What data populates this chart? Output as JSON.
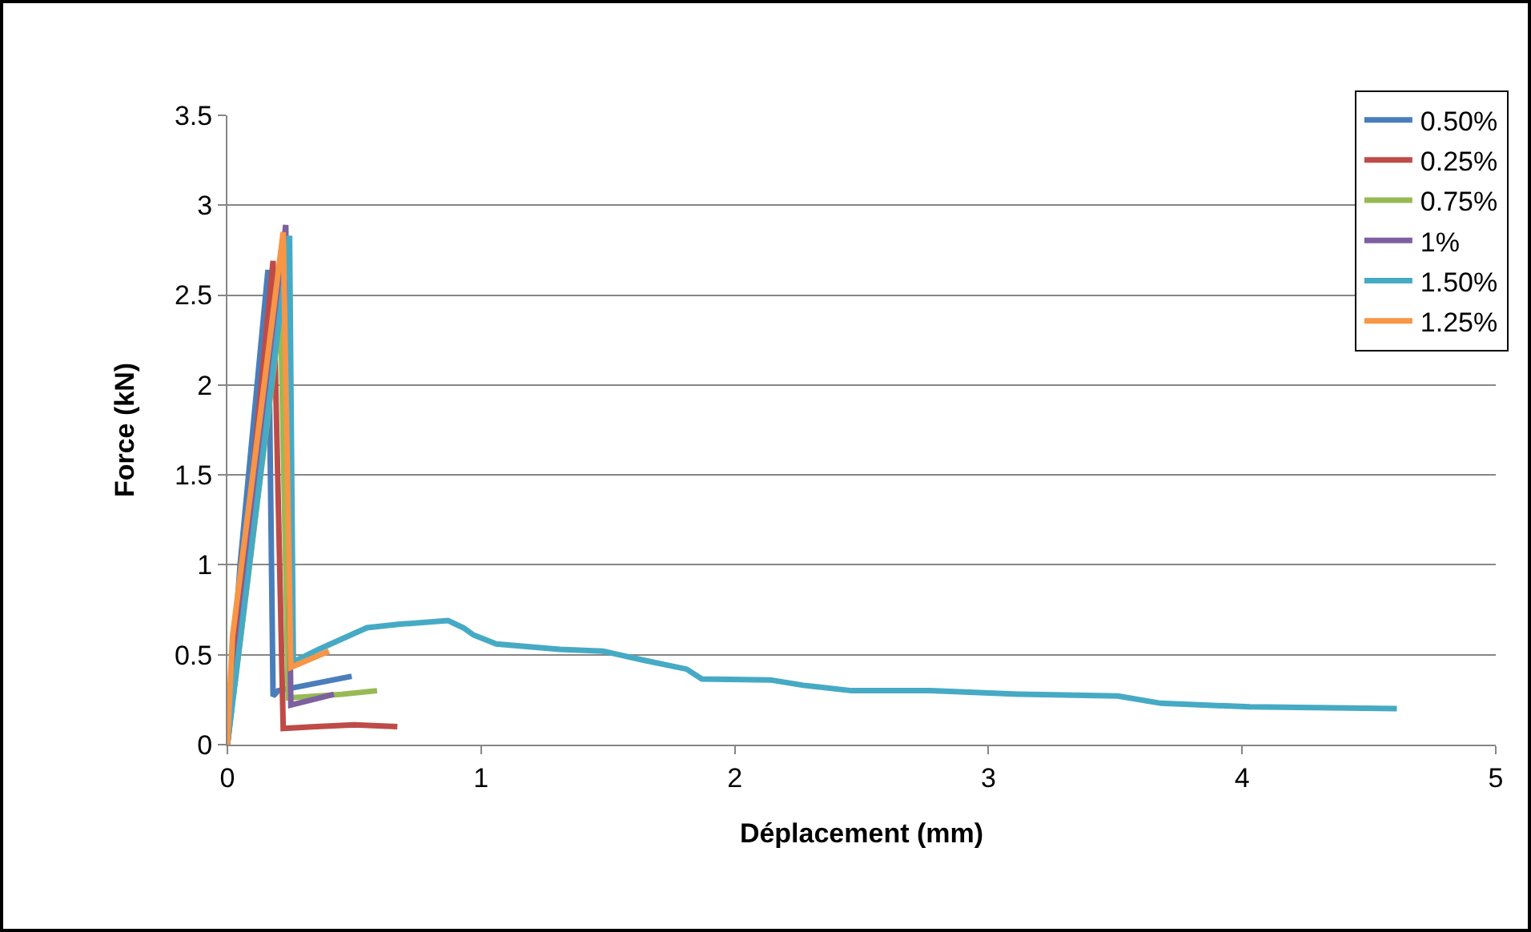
{
  "chart_data": {
    "type": "line",
    "xlabel": "Déplacement (mm)",
    "ylabel": "Force (kN)",
    "xlim": [
      0,
      5
    ],
    "xticks": [
      0,
      1,
      2,
      3,
      4,
      5
    ],
    "ylim": [
      0,
      3.5
    ],
    "yticks": [
      0,
      0.5,
      1,
      1.5,
      2,
      2.5,
      3,
      3.5
    ],
    "grid": "y",
    "legend": "top right",
    "marker": "none",
    "line_style": "solid",
    "series": [
      {
        "name": "0.50%",
        "color": "#4a7ebb",
        "x": [
          0,
          0.05,
          0.16,
          0.18,
          0.2,
          0.49
        ],
        "values": [
          0,
          1.0,
          2.64,
          0.27,
          0.3,
          0.38
        ]
      },
      {
        "name": "0.25%",
        "color": "#be4b48",
        "x": [
          0,
          0.18,
          0.22,
          0.35,
          0.5,
          0.67
        ],
        "values": [
          0,
          2.69,
          0.09,
          0.1,
          0.11,
          0.1
        ]
      },
      {
        "name": "0.75%",
        "color": "#98b954",
        "x": [
          0,
          0.21,
          0.24,
          0.45,
          0.59
        ],
        "values": [
          0,
          2.4,
          0.26,
          0.28,
          0.3
        ]
      },
      {
        "name": "1%",
        "color": "#7d60a0",
        "x": [
          0,
          0.23,
          0.25,
          0.42
        ],
        "values": [
          0,
          2.89,
          0.22,
          0.28
        ]
      },
      {
        "name": "1.50%",
        "color": "#46aac5",
        "x": [
          0,
          0.245,
          0.26,
          0.36,
          0.55,
          0.68,
          0.87,
          0.93,
          0.97,
          1.06,
          1.31,
          1.48,
          1.64,
          1.81,
          1.87,
          2.14,
          2.27,
          2.46,
          2.77,
          3.13,
          3.51,
          3.68,
          4.03,
          4.61
        ],
        "values": [
          0,
          2.83,
          0.46,
          0.53,
          0.65,
          0.67,
          0.69,
          0.65,
          0.61,
          0.56,
          0.53,
          0.52,
          0.47,
          0.42,
          0.365,
          0.36,
          0.33,
          0.3,
          0.3,
          0.28,
          0.27,
          0.23,
          0.21,
          0.2
        ]
      },
      {
        "name": "1.25%",
        "color": "#f79646",
        "x": [
          0,
          0.02,
          0.22,
          0.25,
          0.4
        ],
        "values": [
          0,
          0.6,
          2.85,
          0.43,
          0.52
        ]
      }
    ]
  }
}
